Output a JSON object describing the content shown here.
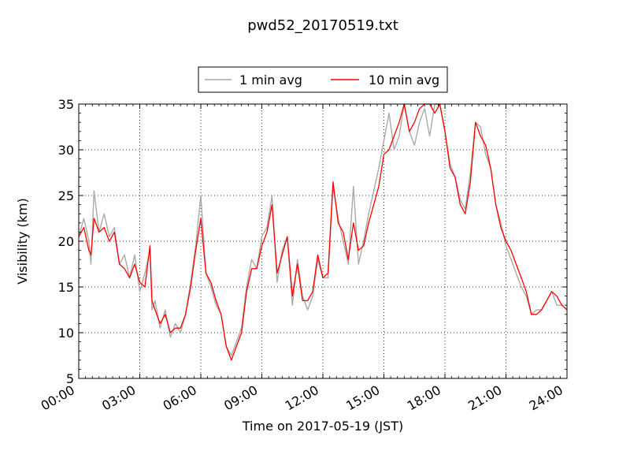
{
  "chart_data": {
    "type": "line",
    "title": "pwd52_20170519.txt",
    "xlabel": "Time on 2017-05-19 (JST)",
    "ylabel": "Visibility (km)",
    "xlim": [
      0,
      24
    ],
    "ylim": [
      5,
      35
    ],
    "grid": true,
    "legend_position": "top-center",
    "x_tick_labels": [
      "00:00",
      "03:00",
      "06:00",
      "09:00",
      "12:00",
      "15:00",
      "18:00",
      "21:00",
      "24:00"
    ],
    "y_tick_labels": [
      "5",
      "10",
      "15",
      "20",
      "25",
      "30",
      "35"
    ],
    "series": [
      {
        "name": "1 min avg",
        "color": "#aaaaaa",
        "x": [
          0.0,
          0.25,
          0.5,
          0.6,
          0.75,
          1.0,
          1.25,
          1.5,
          1.75,
          2.0,
          2.25,
          2.5,
          2.75,
          3.0,
          3.25,
          3.5,
          3.6,
          3.75,
          4.0,
          4.25,
          4.5,
          4.75,
          5.0,
          5.25,
          5.5,
          5.75,
          6.0,
          6.25,
          6.5,
          6.75,
          7.0,
          7.25,
          7.5,
          7.75,
          8.0,
          8.25,
          8.5,
          8.75,
          9.0,
          9.25,
          9.5,
          9.75,
          10.0,
          10.25,
          10.5,
          10.75,
          11.0,
          11.25,
          11.5,
          11.75,
          12.0,
          12.25,
          12.5,
          12.75,
          13.0,
          13.25,
          13.5,
          13.75,
          14.0,
          14.25,
          14.5,
          14.75,
          15.0,
          15.25,
          15.5,
          15.75,
          16.0,
          16.25,
          16.5,
          16.75,
          17.0,
          17.25,
          17.5,
          17.75,
          18.0,
          18.25,
          18.5,
          18.75,
          19.0,
          19.25,
          19.5,
          19.75,
          20.0,
          20.25,
          20.5,
          20.75,
          21.0,
          21.25,
          21.5,
          21.75,
          22.0,
          22.25,
          22.5,
          22.75,
          23.0,
          23.25,
          23.5,
          23.75,
          24.0
        ],
        "values": [
          20.5,
          22.5,
          20.0,
          17.5,
          25.5,
          21.0,
          23.0,
          20.5,
          21.5,
          17.5,
          18.5,
          16.0,
          18.5,
          14.5,
          16.5,
          19.0,
          12.5,
          13.5,
          10.5,
          12.5,
          9.5,
          11.0,
          10.0,
          12.0,
          15.5,
          19.5,
          25.0,
          16.5,
          15.0,
          13.0,
          12.0,
          8.5,
          7.5,
          9.0,
          10.5,
          15.0,
          18.0,
          17.0,
          20.5,
          21.5,
          25.0,
          15.5,
          19.0,
          20.5,
          13.0,
          18.0,
          14.0,
          12.5,
          14.0,
          18.0,
          16.0,
          16.0,
          26.0,
          22.5,
          20.0,
          17.5,
          26.0,
          17.5,
          20.0,
          23.0,
          25.5,
          28.0,
          31.0,
          34.0,
          30.0,
          31.5,
          35.0,
          32.0,
          30.5,
          33.0,
          34.5,
          31.5,
          35.0,
          35.0,
          32.0,
          28.5,
          27.0,
          24.5,
          23.5,
          27.5,
          33.0,
          32.5,
          29.5,
          28.0,
          24.0,
          22.0,
          19.5,
          18.0,
          16.5,
          15.0,
          14.0,
          12.0,
          12.5,
          12.5,
          13.5,
          14.5,
          13.0,
          13.0,
          12.5
        ]
      },
      {
        "name": "10 min avg",
        "color": "#ff0000",
        "x": [
          0.0,
          0.25,
          0.5,
          0.6,
          0.75,
          1.0,
          1.25,
          1.5,
          1.75,
          2.0,
          2.25,
          2.5,
          2.75,
          3.0,
          3.25,
          3.5,
          3.6,
          3.75,
          4.0,
          4.25,
          4.5,
          4.75,
          5.0,
          5.25,
          5.5,
          5.75,
          6.0,
          6.25,
          6.5,
          6.75,
          7.0,
          7.25,
          7.5,
          7.75,
          8.0,
          8.25,
          8.5,
          8.75,
          9.0,
          9.25,
          9.5,
          9.75,
          10.0,
          10.25,
          10.5,
          10.75,
          11.0,
          11.25,
          11.5,
          11.75,
          12.0,
          12.25,
          12.5,
          12.75,
          13.0,
          13.25,
          13.5,
          13.75,
          14.0,
          14.25,
          14.5,
          14.75,
          15.0,
          15.25,
          15.5,
          15.75,
          16.0,
          16.25,
          16.5,
          16.75,
          17.0,
          17.25,
          17.5,
          17.75,
          18.0,
          18.25,
          18.5,
          18.75,
          19.0,
          19.25,
          19.5,
          19.75,
          20.0,
          20.25,
          20.5,
          20.75,
          21.0,
          21.25,
          21.5,
          21.75,
          22.0,
          22.25,
          22.5,
          22.75,
          23.0,
          23.25,
          23.5,
          23.75,
          24.0
        ],
        "values": [
          20.5,
          21.5,
          19.0,
          18.5,
          22.5,
          21.0,
          21.5,
          20.0,
          21.0,
          17.5,
          17.0,
          16.0,
          17.5,
          15.5,
          15.0,
          19.5,
          13.5,
          12.5,
          11.0,
          12.0,
          10.0,
          10.5,
          10.5,
          12.0,
          15.0,
          19.0,
          22.5,
          16.5,
          15.5,
          13.5,
          12.0,
          8.5,
          7.0,
          8.5,
          10.0,
          14.5,
          17.0,
          17.0,
          19.5,
          21.0,
          24.0,
          16.5,
          18.5,
          20.5,
          14.0,
          17.5,
          13.5,
          13.5,
          14.5,
          18.5,
          16.0,
          16.5,
          26.5,
          22.0,
          21.0,
          18.0,
          22.0,
          19.0,
          19.5,
          22.0,
          24.0,
          26.0,
          29.5,
          30.0,
          31.5,
          33.0,
          35.0,
          32.0,
          33.0,
          34.5,
          35.0,
          35.0,
          34.0,
          35.0,
          32.0,
          28.0,
          27.0,
          24.0,
          23.0,
          26.5,
          33.0,
          31.5,
          30.5,
          28.0,
          24.0,
          21.5,
          20.0,
          19.0,
          17.5,
          16.0,
          14.5,
          12.0,
          12.0,
          12.5,
          13.5,
          14.5,
          14.0,
          13.0,
          12.5
        ]
      }
    ]
  }
}
